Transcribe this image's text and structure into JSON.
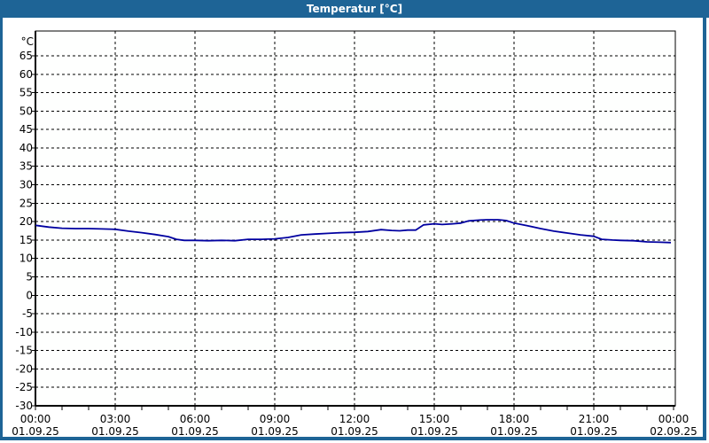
{
  "window": {
    "title": "Temperatur [°C]"
  },
  "colors": {
    "titlebar_bg": "#1E6496",
    "window_border": "#1E6496",
    "title_text": "#FFFFFF",
    "plot_background": "#FEFFFE",
    "grid": "#000000",
    "axis": "#000000",
    "line": "#0000A0"
  },
  "chart_data": {
    "type": "line",
    "title": "Temperatur [°C]",
    "ylabel": "°C",
    "grid": "dashed",
    "legend": "none",
    "y_axis": {
      "unit": "°C",
      "min": -30,
      "max_visible": 71,
      "tick_step": 5,
      "ticks": [
        65,
        60,
        55,
        50,
        45,
        40,
        35,
        30,
        25,
        20,
        15,
        10,
        5,
        0,
        -5,
        -10,
        -15,
        -20,
        -25,
        -30
      ]
    },
    "x_axis": {
      "range_hours": [
        0,
        24
      ],
      "major_tick_hours": 3,
      "minor_tick_hours": 1,
      "labels": [
        {
          "time": "00:00",
          "date": "01.09.25"
        },
        {
          "time": "03:00",
          "date": "01.09.25"
        },
        {
          "time": "06:00",
          "date": "01.09.25"
        },
        {
          "time": "09:00",
          "date": "01.09.25"
        },
        {
          "time": "12:00",
          "date": "01.09.25"
        },
        {
          "time": "15:00",
          "date": "01.09.25"
        },
        {
          "time": "18:00",
          "date": "01.09.25"
        },
        {
          "time": "21:00",
          "date": "01.09.25"
        },
        {
          "time": "00:00",
          "date": "02.09.25"
        }
      ]
    },
    "series": [
      {
        "name": "Temperatur",
        "color": "#0000A0",
        "x_hours": [
          0,
          0.5,
          1,
          1.5,
          2,
          2.5,
          3,
          3.5,
          4,
          4.5,
          5,
          5.3,
          5.6,
          6,
          6.5,
          7,
          7.5,
          8,
          8.5,
          9,
          9.5,
          10,
          10.5,
          11,
          11.5,
          12,
          12.5,
          13,
          13.4,
          13.7,
          14,
          14.3,
          14.6,
          15,
          15.3,
          15.7,
          16,
          16.3,
          16.7,
          17,
          17.4,
          17.7,
          18,
          18.5,
          19,
          19.5,
          20,
          20.5,
          21,
          21.3,
          21.7,
          22,
          22.5,
          23,
          23.5,
          23.9
        ],
        "values": [
          19.0,
          18.5,
          18.2,
          18.1,
          18.1,
          18.0,
          17.9,
          17.4,
          17.0,
          16.5,
          15.9,
          15.2,
          14.9,
          14.9,
          14.8,
          14.9,
          14.8,
          15.2,
          15.2,
          15.3,
          15.7,
          16.4,
          16.6,
          16.8,
          17.0,
          17.1,
          17.3,
          17.8,
          17.6,
          17.5,
          17.7,
          17.7,
          19.1,
          19.4,
          19.2,
          19.4,
          19.6,
          20.2,
          20.4,
          20.5,
          20.5,
          20.3,
          19.6,
          18.9,
          18.1,
          17.4,
          16.9,
          16.4,
          16.0,
          15.2,
          15.0,
          14.9,
          14.8,
          14.5,
          14.4,
          14.3
        ]
      }
    ]
  }
}
